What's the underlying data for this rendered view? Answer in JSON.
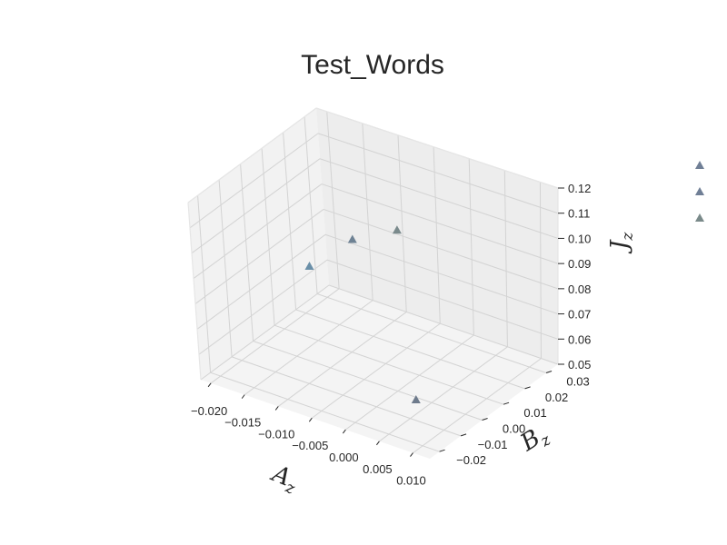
{
  "chart_data": {
    "type": "scatter",
    "title": "Test_Words",
    "xlabel": "A",
    "xlabel_sub": "z",
    "ylabel": "B",
    "ylabel_sub": "z",
    "zlabel": "J",
    "zlabel_sub": "z",
    "x_ticks": [
      "−0.020",
      "−0.015",
      "−0.010",
      "−0.005",
      "0.000",
      "0.005",
      "0.010"
    ],
    "y_ticks": [
      "−0.02",
      "−0.01",
      "0.00",
      "0.01",
      "0.02",
      "0.03"
    ],
    "z_ticks": [
      "0.05",
      "0.06",
      "0.07",
      "0.08",
      "0.09",
      "0.10",
      "0.11",
      "0.12"
    ],
    "xlim": [
      -0.0215,
      0.0125
    ],
    "ylim": [
      -0.0245,
      0.0355
    ],
    "zlim": [
      0.05,
      0.12
    ],
    "grid": true,
    "marker": "triangle",
    "points": [
      {
        "x": -0.019,
        "y": 0.02,
        "z": 0.0695,
        "color": "#6a8fa8"
      },
      {
        "x": -0.016,
        "y": 0.031,
        "z": 0.076,
        "color": "#6e8294"
      },
      {
        "x": -0.01,
        "y": 0.033,
        "z": 0.084,
        "color": "#7a8a8c"
      },
      {
        "x": 0.003,
        "y": -0.001,
        "z": 0.05,
        "color": "#6e7b8c"
      }
    ],
    "legend": {
      "placement": "right",
      "entries": [
        {
          "label": "",
          "color": "#707f96"
        },
        {
          "label": "",
          "color": "#707f96"
        },
        {
          "label": "",
          "color": "#7a8a8a"
        }
      ]
    },
    "colors": {
      "pane_left": "#f2f2f2",
      "pane_back": "#ededed",
      "pane_floor": "#f4f4f4",
      "grid": "#d3d3d3",
      "text": "#262626"
    }
  }
}
